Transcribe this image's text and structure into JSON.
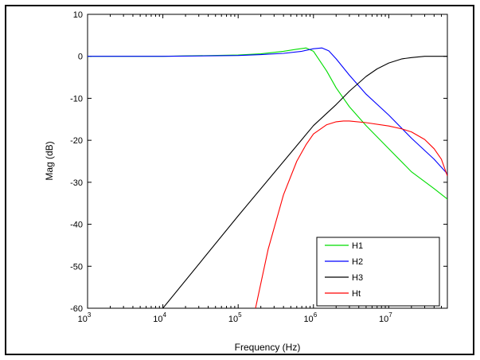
{
  "chart_data": {
    "type": "line",
    "title": "",
    "xlabel": "Frequency (Hz)",
    "ylabel": "Mag (dB)",
    "xscale": "log",
    "xlim": [
      1000,
      60000000
    ],
    "ylim": [
      -60,
      10
    ],
    "x_tick_labels": [
      {
        "value": 1000,
        "base": "10",
        "exp": "3"
      },
      {
        "value": 10000,
        "base": "10",
        "exp": "4"
      },
      {
        "value": 100000,
        "base": "10",
        "exp": "5"
      },
      {
        "value": 1000000,
        "base": "10",
        "exp": "6"
      },
      {
        "value": 10000000,
        "base": "10",
        "exp": "7"
      }
    ],
    "y_ticks": [
      10,
      0,
      -10,
      -20,
      -30,
      -40,
      -50,
      -60
    ],
    "y_tick_labels": [
      "10",
      "0",
      "-10",
      "-20",
      "-30",
      "-40",
      "-50",
      "-60"
    ],
    "grid": false,
    "legend_position": "bottom-right",
    "series": [
      {
        "name": "H1",
        "color": "#00dd00",
        "x": [
          1000,
          10000,
          100000,
          200000,
          400000,
          600000,
          800000,
          1000000,
          1500000,
          2000000,
          3000000,
          5000000,
          10000000,
          20000000,
          40000000,
          60000000
        ],
        "y": [
          0,
          0,
          0.3,
          0.6,
          1.2,
          1.7,
          2.0,
          1.2,
          -3.5,
          -7.5,
          -12,
          -16.5,
          -22,
          -27.5,
          -31.5,
          -34
        ]
      },
      {
        "name": "H2",
        "color": "#0000ff",
        "x": [
          1000,
          10000,
          100000,
          200000,
          400000,
          700000,
          1000000,
          1300000,
          1600000,
          2000000,
          3000000,
          5000000,
          10000000,
          20000000,
          40000000,
          60000000
        ],
        "y": [
          0,
          0,
          0.2,
          0.4,
          0.7,
          1.2,
          1.8,
          2.0,
          1.3,
          -0.6,
          -4.5,
          -9,
          -14,
          -19.5,
          -24.5,
          -28
        ]
      },
      {
        "name": "H3",
        "color": "#000000",
        "x": [
          10000,
          100000,
          1000000,
          2000000,
          3000000,
          5000000,
          7000000,
          10000000,
          15000000,
          20000000,
          30000000,
          60000000
        ],
        "y": [
          -60,
          -38,
          -16.5,
          -11.5,
          -8.3,
          -4.8,
          -3.0,
          -1.6,
          -0.6,
          -0.3,
          0,
          0
        ]
      },
      {
        "name": "Ht",
        "color": "#ff0000",
        "x": [
          170000,
          250000,
          400000,
          600000,
          800000,
          1000000,
          1500000,
          2000000,
          2500000,
          3000000,
          5000000,
          10000000,
          15000000,
          20000000,
          30000000,
          40000000,
          50000000,
          60000000
        ],
        "y": [
          -60,
          -46,
          -33,
          -25,
          -21,
          -18.5,
          -16.3,
          -15.6,
          -15.4,
          -15.4,
          -15.8,
          -16.6,
          -17.3,
          -18.0,
          -19.8,
          -22,
          -24.5,
          -28.5
        ]
      }
    ]
  }
}
